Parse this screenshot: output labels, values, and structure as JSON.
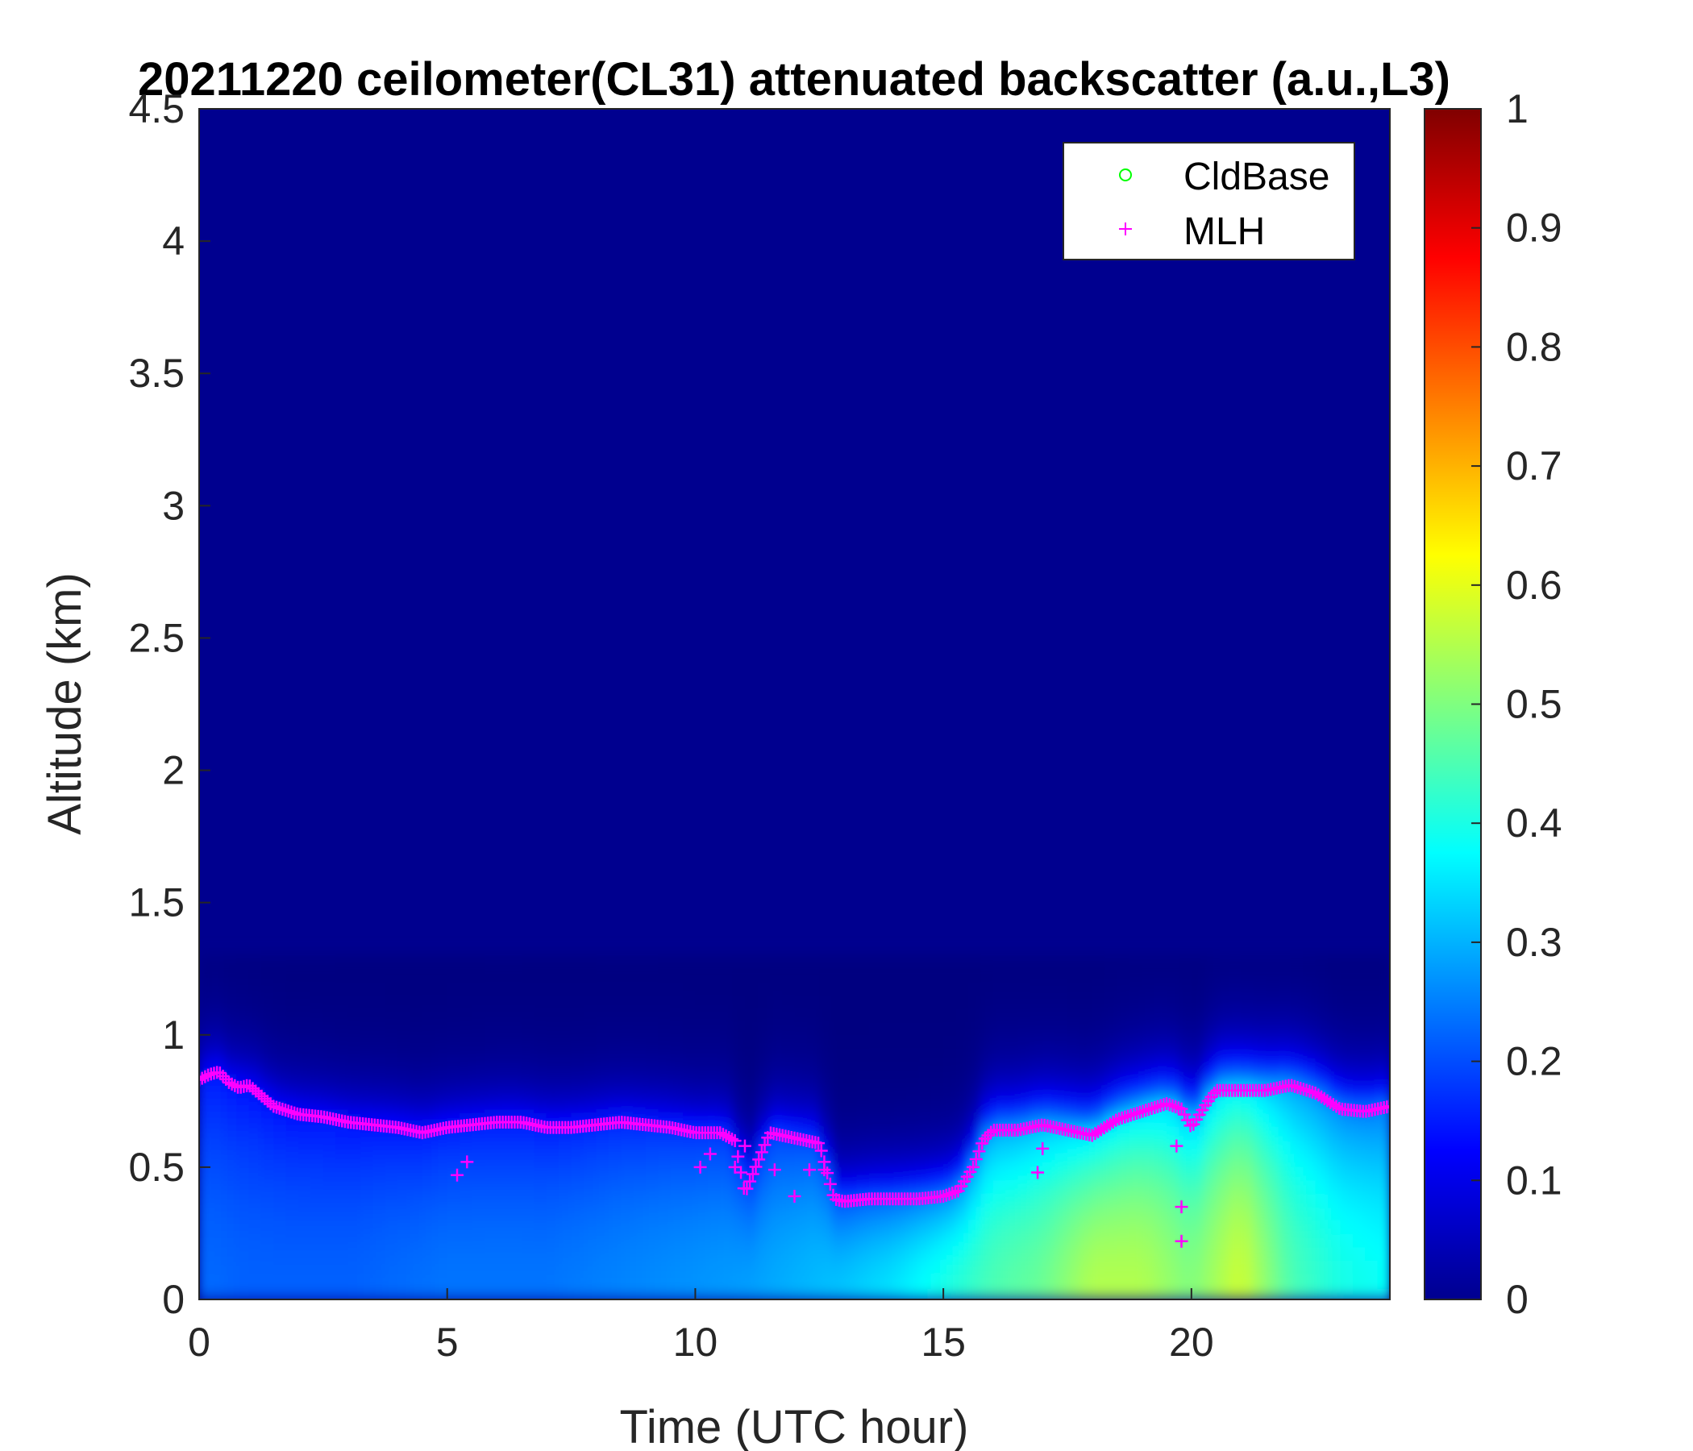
{
  "chart_data": {
    "type": "heatmap",
    "title": "20211220 ceilometer(CL31) attenuated backscatter (a.u.,L3)",
    "xlabel": "Time (UTC hour)",
    "ylabel": "Altitude (km)",
    "xlim": [
      0,
      24
    ],
    "ylim": [
      0,
      4.5
    ],
    "x_ticks": [
      "0",
      "5",
      "10",
      "15",
      "20"
    ],
    "x_tick_values": [
      0,
      5,
      10,
      15,
      20
    ],
    "y_ticks": [
      "0",
      "0.5",
      "1",
      "1.5",
      "2",
      "2.5",
      "3",
      "3.5",
      "4",
      "4.5"
    ],
    "y_tick_values": [
      0,
      0.5,
      1,
      1.5,
      2,
      2.5,
      3,
      3.5,
      4,
      4.5
    ],
    "colorbar": {
      "colormap": "jet",
      "range": [
        0,
        1
      ],
      "ticks": [
        "0",
        "0.1",
        "0.2",
        "0.3",
        "0.4",
        "0.5",
        "0.6",
        "0.7",
        "0.8",
        "0.9",
        "1"
      ],
      "tick_values": [
        0,
        0.1,
        0.2,
        0.3,
        0.4,
        0.5,
        0.6,
        0.7,
        0.8,
        0.9,
        1
      ]
    },
    "background_value": 0.0,
    "backscatter_profile": {
      "hours": [
        0,
        1,
        2,
        3,
        4,
        5,
        6,
        7,
        8,
        9,
        10,
        11,
        12,
        13,
        14,
        15,
        16,
        17,
        18,
        19,
        20,
        21,
        22,
        23,
        24
      ],
      "surface_value": [
        0.23,
        0.22,
        0.22,
        0.22,
        0.23,
        0.24,
        0.24,
        0.24,
        0.25,
        0.26,
        0.27,
        0.28,
        0.3,
        0.32,
        0.35,
        0.4,
        0.45,
        0.48,
        0.55,
        0.55,
        0.5,
        0.58,
        0.45,
        0.4,
        0.38
      ]
    },
    "legend": {
      "position": "top-right",
      "entries": [
        {
          "label": "CldBase",
          "marker": "circle",
          "color": "#00ff00"
        },
        {
          "label": "MLH",
          "marker": "plus",
          "color": "#ff00ff"
        }
      ]
    },
    "series": [
      {
        "name": "MLH",
        "marker": "plus",
        "color": "#ff00ff",
        "x": [
          0,
          0.2,
          0.4,
          0.6,
          0.8,
          1.0,
          1.5,
          2.0,
          2.5,
          3.0,
          3.5,
          4.0,
          4.5,
          5.0,
          5.5,
          6.0,
          6.5,
          7.0,
          7.5,
          8.0,
          8.5,
          9.0,
          9.5,
          10.0,
          10.5,
          10.8,
          11.0,
          11.5,
          12.0,
          12.5,
          12.8,
          13.0,
          13.5,
          14.0,
          14.5,
          15.0,
          15.3,
          15.6,
          15.8,
          16.0,
          16.5,
          17.0,
          17.5,
          18.0,
          18.5,
          19.0,
          19.5,
          19.8,
          20.0,
          20.3,
          20.5,
          21.0,
          21.5,
          22.0,
          22.5,
          23.0,
          23.5,
          24.0
        ],
        "y": [
          0.83,
          0.85,
          0.86,
          0.82,
          0.8,
          0.81,
          0.73,
          0.7,
          0.69,
          0.67,
          0.66,
          0.65,
          0.63,
          0.65,
          0.66,
          0.67,
          0.67,
          0.65,
          0.65,
          0.66,
          0.67,
          0.66,
          0.65,
          0.63,
          0.63,
          0.6,
          0.4,
          0.63,
          0.61,
          0.59,
          0.38,
          0.37,
          0.38,
          0.38,
          0.38,
          0.39,
          0.41,
          0.5,
          0.6,
          0.64,
          0.64,
          0.66,
          0.64,
          0.62,
          0.68,
          0.71,
          0.74,
          0.72,
          0.65,
          0.74,
          0.79,
          0.79,
          0.79,
          0.81,
          0.78,
          0.72,
          0.71,
          0.73
        ],
        "outliers_x": [
          5.2,
          5.4,
          10.1,
          10.3,
          10.8,
          11.0,
          11.6,
          12.0,
          12.3,
          12.6,
          16.9,
          17.0,
          19.7,
          19.8,
          19.8
        ],
        "outliers_y": [
          0.47,
          0.52,
          0.5,
          0.55,
          0.5,
          0.58,
          0.49,
          0.39,
          0.49,
          0.49,
          0.48,
          0.57,
          0.58,
          0.35,
          0.22
        ]
      },
      {
        "name": "CldBase",
        "marker": "circle",
        "color": "#00ff00",
        "x": [],
        "y": []
      }
    ]
  }
}
